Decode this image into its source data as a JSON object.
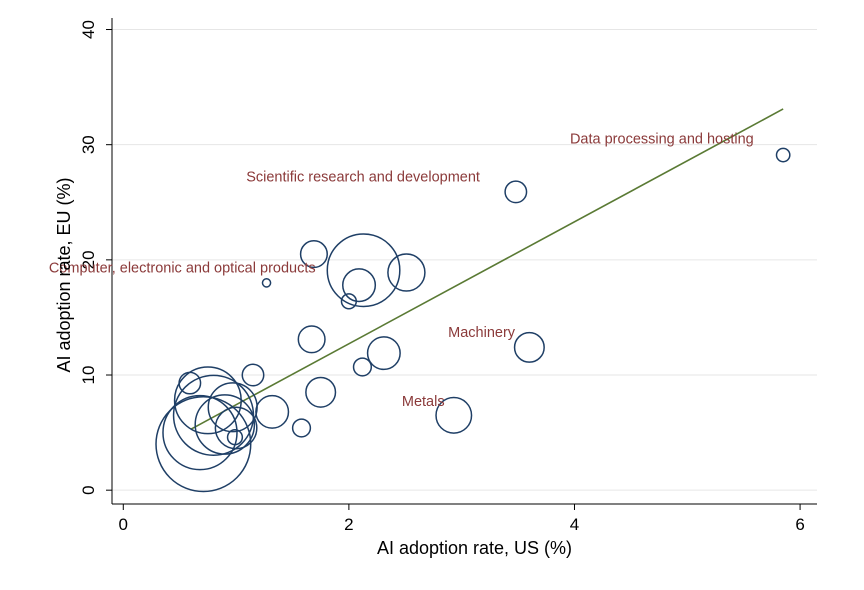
{
  "chart_data": {
    "type": "scatter",
    "title": "",
    "xlabel": "AI adoption rate, US (%)",
    "ylabel": "AI adoption rate, EU (%)",
    "xlim": [
      -0.1,
      6.15
    ],
    "ylim": [
      -1.2,
      41
    ],
    "xticks": [
      0,
      2,
      4,
      6
    ],
    "yticks": [
      0,
      10,
      20,
      30,
      40
    ],
    "grid": "horizontal",
    "legend": "none",
    "colors": {
      "marker": "#1f3f66",
      "fit_line": "#5a7a34",
      "label": "#8b3a3a",
      "grid": "#e6e6e6",
      "axis": "#000000"
    },
    "fit_line": {
      "x": [
        0.6,
        5.85
      ],
      "y": [
        5.3,
        33.1
      ]
    },
    "points": [
      {
        "x": 5.85,
        "y": 29.1,
        "size": 1.8
      },
      {
        "x": 3.48,
        "y": 25.9,
        "size": 2.9
      },
      {
        "x": 1.27,
        "y": 18.0,
        "size": 1.1
      },
      {
        "x": 1.69,
        "y": 20.5,
        "size": 3.6
      },
      {
        "x": 2.13,
        "y": 19.1,
        "size": 9.8
      },
      {
        "x": 2.51,
        "y": 18.9,
        "size": 5.0
      },
      {
        "x": 2.09,
        "y": 17.8,
        "size": 4.4
      },
      {
        "x": 2.0,
        "y": 16.4,
        "size": 2.0
      },
      {
        "x": 1.67,
        "y": 13.1,
        "size": 3.6
      },
      {
        "x": 2.31,
        "y": 11.9,
        "size": 4.4
      },
      {
        "x": 2.12,
        "y": 10.7,
        "size": 2.4
      },
      {
        "x": 3.6,
        "y": 12.4,
        "size": 4.0
      },
      {
        "x": 1.15,
        "y": 10.0,
        "size": 2.9
      },
      {
        "x": 0.59,
        "y": 9.3,
        "size": 2.9
      },
      {
        "x": 1.75,
        "y": 8.5,
        "size": 4.0
      },
      {
        "x": 2.93,
        "y": 6.5,
        "size": 4.8
      },
      {
        "x": 0.75,
        "y": 7.8,
        "size": 9.0
      },
      {
        "x": 0.97,
        "y": 7.2,
        "size": 6.6
      },
      {
        "x": 0.8,
        "y": 6.5,
        "size": 10.8
      },
      {
        "x": 1.32,
        "y": 6.8,
        "size": 4.4
      },
      {
        "x": 0.9,
        "y": 5.7,
        "size": 8.0
      },
      {
        "x": 1.0,
        "y": 5.4,
        "size": 5.6
      },
      {
        "x": 1.58,
        "y": 5.4,
        "size": 2.4
      },
      {
        "x": 0.99,
        "y": 4.6,
        "size": 2.0
      },
      {
        "x": 0.68,
        "y": 5.0,
        "size": 10.0
      },
      {
        "x": 0.71,
        "y": 4.0,
        "size": 12.8
      }
    ],
    "annotations": [
      {
        "text": "Data processing and hosting",
        "x": 3.96,
        "y": 30.1
      },
      {
        "text": "Scientific research and development",
        "x": 1.09,
        "y": 26.8
      },
      {
        "text": "Computer, electronic and optical products",
        "x": -0.66,
        "y": 18.9
      },
      {
        "text": "Machinery",
        "x": 2.88,
        "y": 13.3
      },
      {
        "text": "Metals",
        "x": 2.47,
        "y": 7.3
      }
    ]
  }
}
